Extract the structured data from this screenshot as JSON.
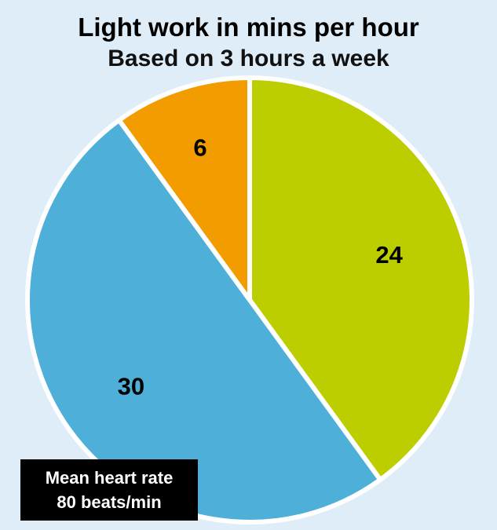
{
  "chart_data": {
    "type": "pie",
    "title": "Light work in mins per hour",
    "subtitle": "Based on 3 hours a week",
    "slices": [
      {
        "label": "24",
        "value": 24,
        "color": "#bcce00"
      },
      {
        "label": "30",
        "value": 30,
        "color": "#4eafd9"
      },
      {
        "label": "6",
        "value": 6,
        "color": "#f39c00"
      }
    ],
    "start_angle_deg": 0,
    "direction": "clockwise",
    "separator_color": "#ffffff",
    "annotation": {
      "line1": "Mean heart rate",
      "line2": "80 beats/min"
    }
  }
}
